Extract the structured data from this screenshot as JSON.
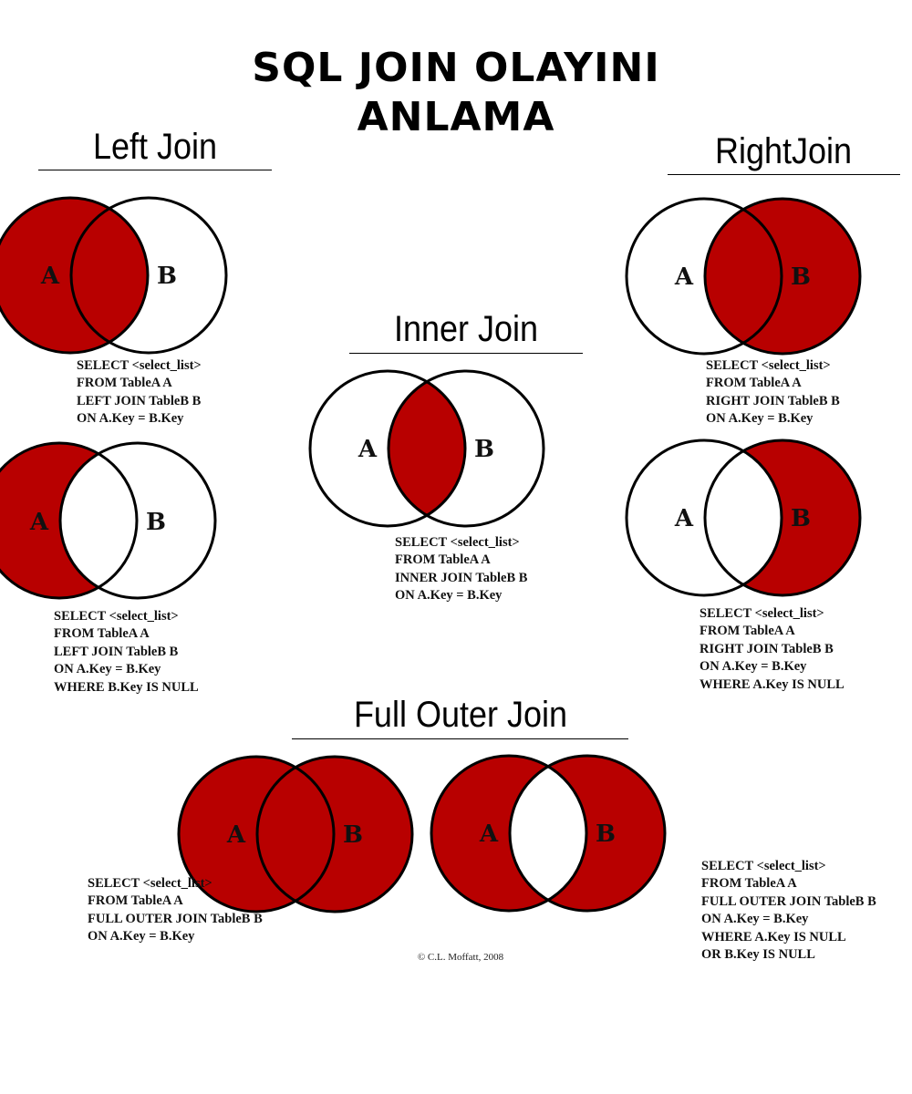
{
  "title": {
    "line1": "SQL JOIN OLAYINI",
    "line2": "ANLAMA"
  },
  "colors": {
    "fill": "#B80000",
    "stroke": "#000000",
    "background": "#FFFFFF"
  },
  "headings": {
    "left_join": "Left Join",
    "right_join": "RightJoin",
    "inner_join": "Inner Join",
    "full_outer_join": "Full Outer Join"
  },
  "diagrams": [
    {
      "id": "left-join",
      "label_a": "A",
      "label_b": "B",
      "filled": [
        "a_only",
        "intersection"
      ],
      "sql": [
        "SELECT <select_list>",
        "FROM TableA A",
        "LEFT JOIN TableB B",
        "ON A.Key = B.Key"
      ]
    },
    {
      "id": "left-join-excluding",
      "label_a": "A",
      "label_b": "B",
      "filled": [
        "a_only"
      ],
      "sql": [
        "SELECT <select_list>",
        "FROM TableA A",
        "LEFT JOIN TableB B",
        "ON A.Key = B.Key",
        "WHERE B.Key IS NULL"
      ]
    },
    {
      "id": "inner-join",
      "label_a": "A",
      "label_b": "B",
      "filled": [
        "intersection"
      ],
      "sql": [
        "SELECT <select_list>",
        "FROM TableA A",
        "INNER JOIN TableB B",
        "ON A.Key = B.Key"
      ]
    },
    {
      "id": "right-join",
      "label_a": "A",
      "label_b": "B",
      "filled": [
        "b_only",
        "intersection"
      ],
      "sql": [
        "SELECT <select_list>",
        "FROM TableA A",
        "RIGHT JOIN TableB B",
        "ON A.Key = B.Key"
      ]
    },
    {
      "id": "right-join-excluding",
      "label_a": "A",
      "label_b": "B",
      "filled": [
        "b_only"
      ],
      "sql": [
        "SELECT <select_list>",
        "FROM TableA A",
        "RIGHT JOIN TableB B",
        "ON A.Key = B.Key",
        "WHERE A.Key IS NULL"
      ]
    },
    {
      "id": "full-outer-join",
      "label_a": "A",
      "label_b": "B",
      "filled": [
        "a_only",
        "intersection",
        "b_only"
      ],
      "sql": [
        "SELECT <select_list>",
        "FROM TableA A",
        "FULL OUTER JOIN TableB B",
        "ON A.Key = B.Key"
      ]
    },
    {
      "id": "full-outer-join-excluding",
      "label_a": "A",
      "label_b": "B",
      "filled": [
        "a_only",
        "b_only"
      ],
      "sql": [
        "SELECT <select_list>",
        "FROM TableA A",
        "FULL OUTER JOIN TableB B",
        "ON A.Key = B.Key",
        "WHERE A.Key IS NULL",
        "OR B.Key IS NULL"
      ]
    }
  ],
  "copyright": "© C.L. Moffatt, 2008"
}
